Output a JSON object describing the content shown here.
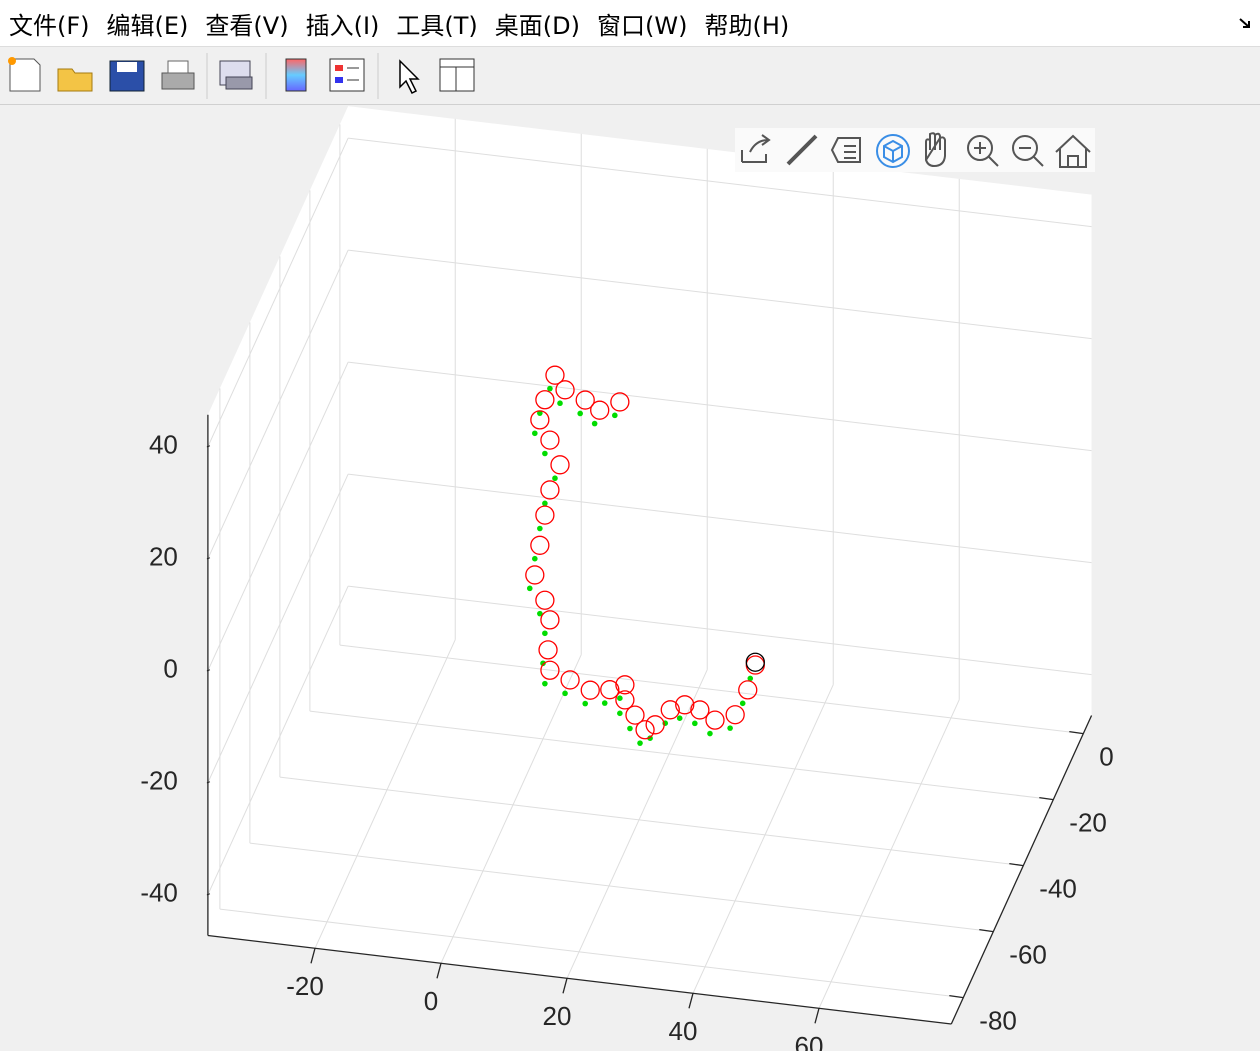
{
  "menu": [
    "文件(F)",
    "编辑(E)",
    "查看(V)",
    "插入(I)",
    "工具(T)",
    "桌面(D)",
    "窗口(W)",
    "帮助(H)"
  ],
  "chart_data": {
    "type": "scatter3d",
    "xlim": [
      -37,
      81
    ],
    "ylim": [
      -88,
      5.5
    ],
    "zlim": [
      -47.3,
      45.7
    ],
    "xticks": [
      -20,
      0,
      20,
      40,
      60
    ],
    "yticks": [
      -80,
      -60,
      -40,
      -20,
      0
    ],
    "zticks": [
      -40,
      -20,
      0,
      20,
      40
    ],
    "grid": true,
    "series": [
      {
        "color": "#00dd00",
        "marker": "dot",
        "x": [
          32.9,
          31.7,
          29.7,
          26.5,
          24.1,
          21.7,
          19.4,
          17.0,
          15.4,
          13.8,
          12.2,
          12.2,
          9.8,
          6.7,
          3.5,
          0.3,
          0.0,
          0.3,
          -0.5,
          -2.1,
          -1.3,
          -0.5,
          0.3,
          1.9,
          0.3,
          -1.3,
          -0.5,
          1.1,
          2.7,
          5.9,
          8.2,
          11.4
        ],
        "y": [
          -20,
          -20,
          -20,
          -20,
          -20,
          -20,
          -20,
          -20,
          -20,
          -20,
          -20,
          -20,
          -20,
          -20,
          -20,
          -20,
          -20,
          -20,
          -20,
          -20,
          -20,
          -20,
          -20,
          -20,
          -20,
          -20,
          -20,
          -20,
          -20,
          -20,
          -20,
          -20
        ],
        "z": [
          -32.1,
          -36.7,
          -41.4,
          -42.8,
          -41.3,
          -40.7,
          -41.9,
          -44.9,
          -46.0,
          -43.6,
          -41.1,
          -38.4,
          -39.6,
          -40.1,
          -38.7,
          -37.4,
          -33.8,
          -28.4,
          -25.0,
          -20.7,
          -15.3,
          -9.8,
          -5.2,
          -0.5,
          3.7,
          7.1,
          10.8,
          15.4,
          13.0,
          11.6,
          10.1,
          12.0
        ]
      },
      {
        "color": "#ff0000",
        "marker": "circle",
        "x": [
          33.7,
          32.5,
          30.5,
          27.3,
          24.9,
          22.5,
          20.2,
          17.8,
          16.2,
          14.6,
          13.0,
          13.0,
          10.6,
          7.5,
          4.3,
          1.1,
          0.8,
          1.1,
          0.3,
          -1.3,
          -0.5,
          0.3,
          1.1,
          2.7,
          1.1,
          -0.5,
          0.3,
          1.9,
          3.5,
          6.7,
          9.0,
          12.2
        ],
        "y": [
          -20,
          -20,
          -20,
          -20,
          -20,
          -20,
          -20,
          -20,
          -20,
          -20,
          -20,
          -20,
          -20,
          -20,
          -20,
          -20,
          -20,
          -20,
          -20,
          -20,
          -20,
          -20,
          -20,
          -20,
          -20,
          -20,
          -20,
          -20,
          -20,
          -20,
          -20,
          -20
        ],
        "z": [
          -29.6,
          -34.2,
          -38.9,
          -40.3,
          -38.8,
          -38.2,
          -39.4,
          -42.4,
          -43.5,
          -41.1,
          -38.6,
          -35.9,
          -37.1,
          -37.6,
          -36.2,
          -34.9,
          -31.3,
          -25.9,
          -22.5,
          -18.2,
          -12.8,
          -7.3,
          -2.7,
          2.0,
          6.2,
          9.6,
          13.3,
          17.9,
          15.5,
          14.1,
          12.6,
          14.5
        ]
      },
      {
        "color": "#000000",
        "marker": "circle",
        "x": [
          33.7
        ],
        "y": [
          -20
        ],
        "z": [
          -29.1
        ]
      }
    ]
  }
}
